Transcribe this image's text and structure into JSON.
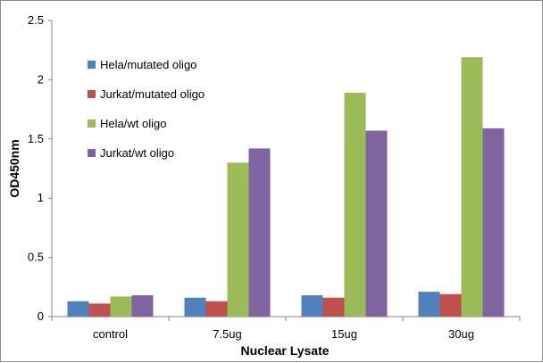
{
  "chart_data": {
    "type": "bar",
    "xlabel": "Nuclear Lysate",
    "ylabel": "OD450nm",
    "ylim": [
      0,
      2.5
    ],
    "yticks": [
      "0",
      "0.5",
      "1",
      "1.5",
      "2",
      "2.5"
    ],
    "categories": [
      "control",
      "7.5ug",
      "15ug",
      "30ug"
    ],
    "series": [
      {
        "name": "Hela/mutated oligo",
        "color": "#4f81bd",
        "values": [
          0.13,
          0.16,
          0.18,
          0.21
        ]
      },
      {
        "name": "Jurkat/mutated oligo",
        "color": "#c0504d",
        "values": [
          0.11,
          0.13,
          0.16,
          0.19
        ]
      },
      {
        "name": "Hela/wt oligo",
        "color": "#9bbb59",
        "values": [
          0.17,
          1.3,
          1.89,
          2.19
        ]
      },
      {
        "name": "Jurkat/wt oligo",
        "color": "#8064a2",
        "values": [
          0.18,
          1.42,
          1.57,
          1.59
        ]
      }
    ],
    "grid": false,
    "legend": "top-left inside plot"
  }
}
